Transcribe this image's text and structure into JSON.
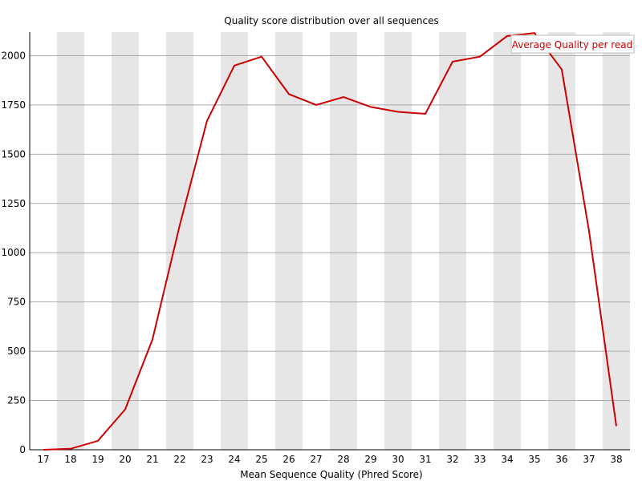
{
  "chart_data": {
    "type": "line",
    "title": "Quality score distribution over all sequences",
    "xlabel": "Mean Sequence Quality (Phred Score)",
    "ylabel": "",
    "x": [
      17,
      18,
      19,
      20,
      21,
      22,
      23,
      24,
      25,
      26,
      27,
      28,
      29,
      30,
      31,
      32,
      33,
      34,
      35,
      36,
      37,
      38
    ],
    "xlim": [
      17,
      38
    ],
    "ylim": [
      0,
      2120
    ],
    "yticks": [
      0,
      250,
      500,
      750,
      1000,
      1250,
      1500,
      1750,
      2000
    ],
    "grid": "horizontal",
    "alternating_column_bands": true,
    "legend_position": "top-right",
    "series": [
      {
        "name": "Average Quality per read",
        "color": "#cc0000",
        "values": [
          0,
          5,
          45,
          205,
          560,
          1140,
          1670,
          1950,
          1995,
          1805,
          1750,
          1790,
          1740,
          1715,
          1705,
          1970,
          1995,
          2100,
          2115,
          1930,
          1110,
          120
        ]
      }
    ]
  }
}
